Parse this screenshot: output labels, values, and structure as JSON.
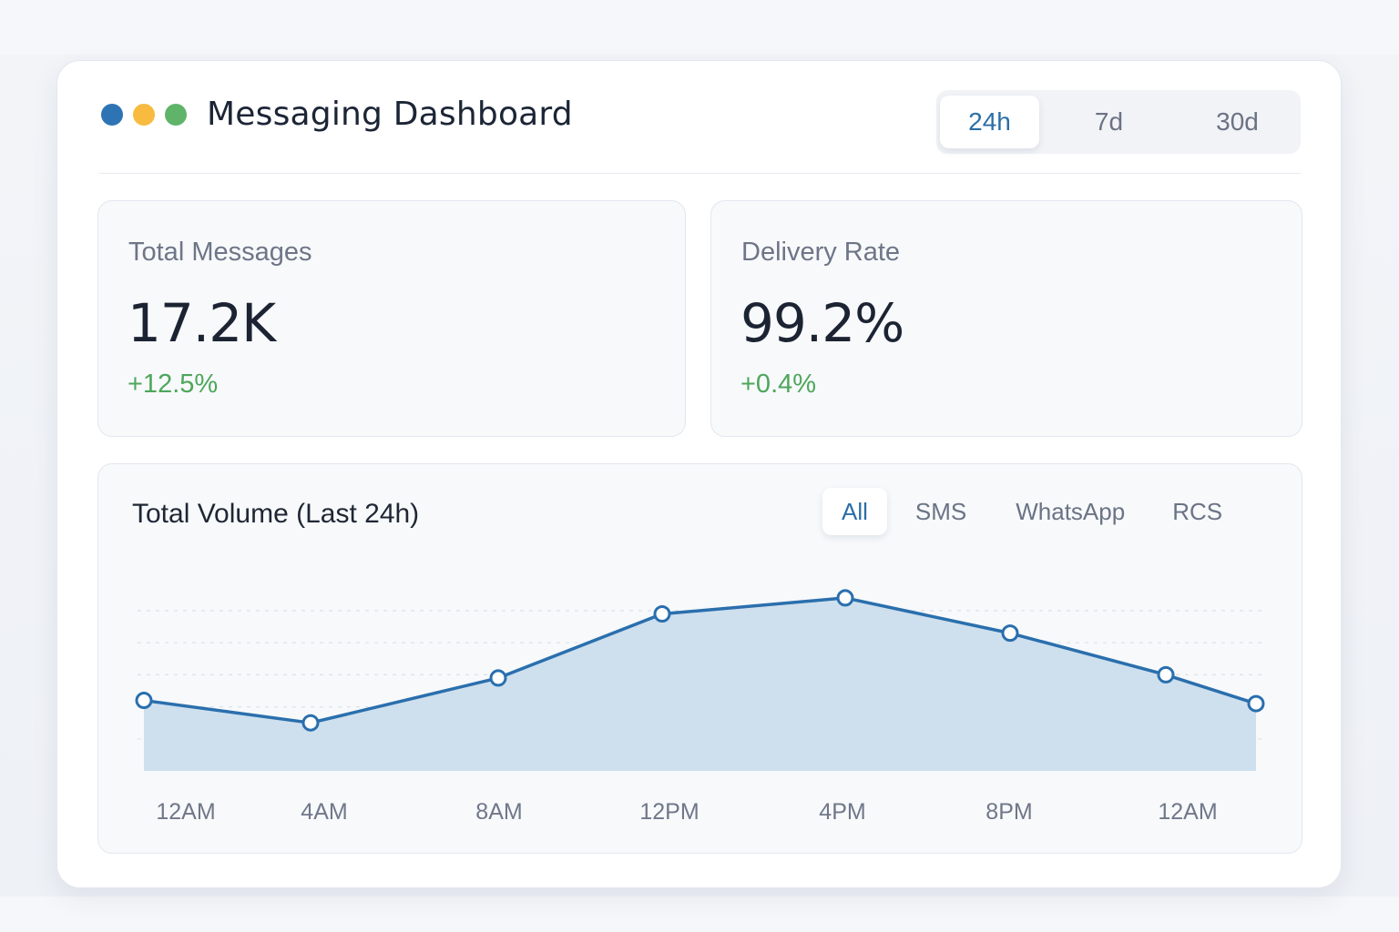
{
  "header": {
    "title": "Messaging Dashboard",
    "window_dots": [
      {
        "name": "blue-dot",
        "color": "#2e74b5"
      },
      {
        "name": "yellow-dot",
        "color": "#f8bb40"
      },
      {
        "name": "green-dot",
        "color": "#5fb46a"
      }
    ],
    "time_ranges": [
      {
        "label": "24h",
        "active": true
      },
      {
        "label": "7d",
        "active": false
      },
      {
        "label": "30d",
        "active": false
      }
    ]
  },
  "stats": [
    {
      "label": "Total Messages",
      "value": "17.2K",
      "delta": "+12.5%",
      "delta_color": "#4ea65b"
    },
    {
      "label": "Delivery Rate",
      "value": "99.2%",
      "delta": "+0.4%",
      "delta_color": "#4ea65b"
    }
  ],
  "chart_panel": {
    "title": "Total Volume (Last 24h)",
    "channel_tabs": [
      {
        "label": "All",
        "active": true
      },
      {
        "label": "SMS",
        "active": false
      },
      {
        "label": "WhatsApp",
        "active": false
      },
      {
        "label": "RCS",
        "active": false
      }
    ]
  },
  "colors": {
    "accent": "#2b6ea6",
    "line": "#2a6fad",
    "area_fill": "#c9dbec",
    "positive": "#4ea65b",
    "gridline": "#dde2ea"
  },
  "chart_data": {
    "type": "area",
    "title": "Total Volume (Last 24h)",
    "xlabel": "",
    "ylabel": "",
    "x_tick_labels": [
      "12AM",
      "4AM",
      "8AM",
      "12PM",
      "4PM",
      "8PM",
      "12AM"
    ],
    "y_axis_labeled": false,
    "grid": {
      "horizontal": true,
      "style": "dashed",
      "lines": 5
    },
    "legend": null,
    "series": [
      {
        "name": "All",
        "points": [
          {
            "x": "12AM",
            "value": 2.2
          },
          {
            "x": "4AM",
            "value": 1.5
          },
          {
            "x": "8AM",
            "value": 2.9
          },
          {
            "x": "12PM",
            "value": 4.9
          },
          {
            "x": "4PM",
            "value": 5.4
          },
          {
            "x": "8PM",
            "value": 4.3
          },
          {
            "x": "12AM",
            "value": 3.0
          },
          {
            "x": "end",
            "value": 2.1
          }
        ]
      }
    ],
    "value_units": "relative (unlabeled y-axis; gridline = 1 unit)",
    "ylim": [
      0,
      5.5
    ]
  }
}
